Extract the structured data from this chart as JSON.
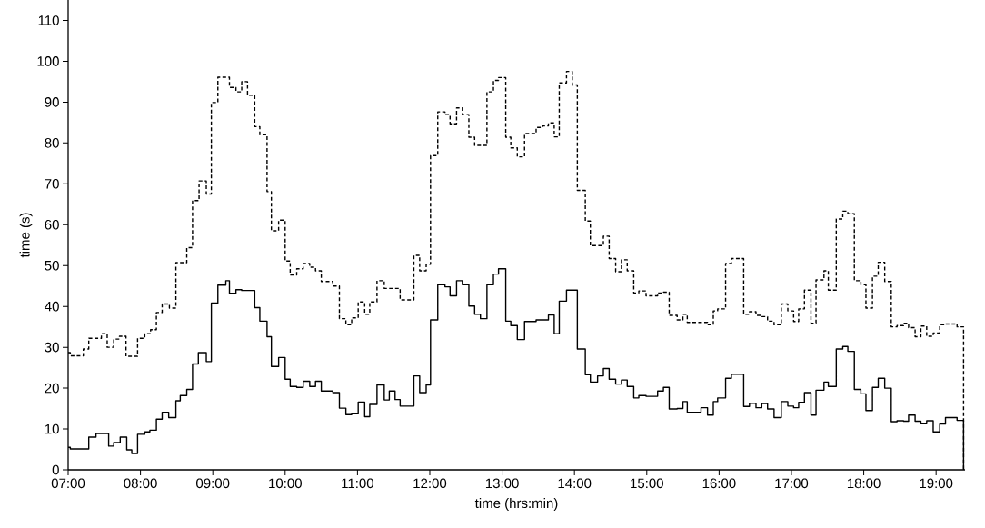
{
  "chart_data": {
    "type": "step",
    "xlabel": "time (hrs:min)",
    "ylabel": "time (s)",
    "xlim": [
      7,
      19.4
    ],
    "ylim": [
      0,
      115
    ],
    "xticks": [
      {
        "value": 7,
        "label": "07:00"
      },
      {
        "value": 8,
        "label": "08:00"
      },
      {
        "value": 9,
        "label": "09:00"
      },
      {
        "value": 10,
        "label": "10:00"
      },
      {
        "value": 11,
        "label": "11:00"
      },
      {
        "value": 12,
        "label": "12:00"
      },
      {
        "value": 13,
        "label": "13:00"
      },
      {
        "value": 14,
        "label": "14:00"
      },
      {
        "value": 15,
        "label": "15:00"
      },
      {
        "value": 16,
        "label": "16:00"
      },
      {
        "value": 17,
        "label": "17:00"
      },
      {
        "value": 18,
        "label": "18:00"
      },
      {
        "value": 19,
        "label": "19:00"
      }
    ],
    "yticks": [
      0,
      10,
      20,
      30,
      40,
      50,
      60,
      70,
      80,
      90,
      100,
      110
    ],
    "series": [
      {
        "color": "#000000",
        "line_style": "dashed",
        "x": [
          7.0,
          7.03,
          7.21,
          7.285,
          7.46,
          7.54,
          7.63,
          7.71,
          7.8,
          7.96,
          8.06,
          8.14,
          8.22,
          8.3,
          8.4,
          8.49,
          8.64,
          8.72,
          8.81,
          8.91,
          8.98,
          9.07,
          9.23,
          9.32,
          9.4,
          9.48,
          9.58,
          9.65,
          9.75,
          9.81,
          9.91,
          10.0,
          10.07,
          10.16,
          10.25,
          10.34,
          10.42,
          10.5,
          10.66,
          10.75,
          10.84,
          10.92,
          11.01,
          11.1,
          11.17,
          11.27,
          11.37,
          11.59,
          11.78,
          11.86,
          11.95,
          12.01,
          12.11,
          12.21,
          12.28,
          12.37,
          12.45,
          12.54,
          12.62,
          12.79,
          12.88,
          12.95,
          13.05,
          13.12,
          13.21,
          13.31,
          13.47,
          13.56,
          13.64,
          13.72,
          13.79,
          13.89,
          13.97,
          14.04,
          14.15,
          14.22,
          14.4,
          14.48,
          14.57,
          14.65,
          14.73,
          14.82,
          14.89,
          14.99,
          15.15,
          15.23,
          15.31,
          15.42,
          15.5,
          15.56,
          15.84,
          15.92,
          15.98,
          16.09,
          16.17,
          16.34,
          16.42,
          16.51,
          16.59,
          16.67,
          16.76,
          16.86,
          16.95,
          17.03,
          17.1,
          17.18,
          17.27,
          17.34,
          17.45,
          17.51,
          17.62,
          17.71,
          17.78,
          17.87,
          17.96,
          18.03,
          18.12,
          18.2,
          18.29,
          18.38,
          18.46,
          18.55,
          18.62,
          18.71,
          18.79,
          18.87,
          18.96,
          19.05,
          19.13,
          19.29,
          19.38
        ],
        "values": [
          28.7,
          27.9,
          29.6,
          32.2,
          33.3,
          30.0,
          32.0,
          32.7,
          27.8,
          32.2,
          33.3,
          34.3,
          38.5,
          40.6,
          39.6,
          50.7,
          54.4,
          65.9,
          70.7,
          67.5,
          89.9,
          96.1,
          93.6,
          92.5,
          95.0,
          91.7,
          84.0,
          82.0,
          68.1,
          58.5,
          61.1,
          51.1,
          47.7,
          49.2,
          50.5,
          49.6,
          48.7,
          46.1,
          45.0,
          37.0,
          35.5,
          37.2,
          41.1,
          38.1,
          41.1,
          46.3,
          44.4,
          41.6,
          52.5,
          48.7,
          50.3,
          76.9,
          87.6,
          86.9,
          84.7,
          88.6,
          86.9,
          81.4,
          79.4,
          92.5,
          95.3,
          96.0,
          81.4,
          78.8,
          76.6,
          82.3,
          83.8,
          84.2,
          84.9,
          81.5,
          94.7,
          97.5,
          94.2,
          68.4,
          60.9,
          54.9,
          57.2,
          51.7,
          48.5,
          51.4,
          48.7,
          43.3,
          43.8,
          42.6,
          43.3,
          43.5,
          37.8,
          36.7,
          38.1,
          36.1,
          35.5,
          38.9,
          39.4,
          50.5,
          51.7,
          38.1,
          38.7,
          37.8,
          37.5,
          36.4,
          35.5,
          40.6,
          38.9,
          36.3,
          39.4,
          44.0,
          35.9,
          46.5,
          48.7,
          44.0,
          61.4,
          63.3,
          62.7,
          46.3,
          45.3,
          39.6,
          47.4,
          50.8,
          46.1,
          35.0,
          35.3,
          35.9,
          34.8,
          32.6,
          35.2,
          32.7,
          33.5,
          35.5,
          35.7,
          35.0,
          0
        ]
      },
      {
        "color": "#000000",
        "line_style": "solid",
        "x": [
          7.0,
          7.03,
          7.285,
          7.385,
          7.56,
          7.63,
          7.72,
          7.81,
          7.88,
          7.96,
          8.06,
          8.13,
          8.22,
          8.3,
          8.39,
          8.49,
          8.55,
          8.64,
          8.72,
          8.8,
          8.91,
          8.98,
          9.07,
          9.18,
          9.23,
          9.32,
          9.4,
          9.58,
          9.65,
          9.75,
          9.81,
          9.91,
          10.0,
          10.07,
          10.16,
          10.25,
          10.34,
          10.42,
          10.5,
          10.66,
          10.75,
          10.84,
          10.92,
          11.01,
          11.1,
          11.17,
          11.27,
          11.37,
          11.44,
          11.52,
          11.59,
          11.78,
          11.86,
          11.95,
          12.01,
          12.11,
          12.21,
          12.28,
          12.37,
          12.45,
          12.54,
          12.62,
          12.7,
          12.79,
          12.88,
          12.95,
          13.05,
          13.12,
          13.21,
          13.31,
          13.47,
          13.64,
          13.72,
          13.79,
          13.89,
          14.04,
          14.15,
          14.22,
          14.32,
          14.4,
          14.48,
          14.57,
          14.65,
          14.73,
          14.82,
          14.89,
          14.99,
          15.15,
          15.23,
          15.31,
          15.42,
          15.5,
          15.56,
          15.75,
          15.84,
          15.92,
          15.98,
          16.09,
          16.17,
          16.34,
          16.42,
          16.51,
          16.59,
          16.67,
          16.76,
          16.86,
          16.95,
          17.03,
          17.1,
          17.18,
          17.27,
          17.34,
          17.45,
          17.51,
          17.62,
          17.71,
          17.78,
          17.87,
          17.96,
          18.03,
          18.12,
          18.2,
          18.29,
          18.38,
          18.46,
          18.55,
          18.62,
          18.71,
          18.79,
          18.87,
          18.96,
          19.05,
          19.13,
          19.29,
          19.38
        ],
        "values": [
          5.5,
          5.1,
          8.0,
          8.9,
          5.8,
          6.7,
          8.0,
          4.9,
          4.0,
          8.7,
          9.3,
          9.7,
          12.4,
          14.1,
          12.8,
          16.9,
          18.2,
          19.7,
          25.9,
          28.7,
          26.5,
          40.8,
          45.2,
          46.3,
          43.2,
          44.1,
          43.9,
          39.7,
          36.4,
          32.6,
          25.3,
          27.5,
          22.2,
          20.4,
          20.2,
          21.7,
          20.4,
          21.7,
          19.3,
          18.9,
          15.1,
          13.5,
          13.7,
          16.6,
          13.0,
          16.0,
          20.8,
          17.1,
          19.3,
          17.2,
          15.6,
          23.0,
          18.9,
          20.8,
          36.7,
          45.3,
          44.8,
          42.6,
          46.3,
          45.3,
          40.1,
          38.1,
          37.0,
          45.3,
          47.9,
          49.2,
          36.4,
          35.3,
          31.9,
          36.3,
          36.7,
          37.9,
          33.3,
          41.3,
          44.0,
          29.6,
          23.3,
          21.5,
          23.0,
          24.8,
          22.2,
          21.0,
          22.0,
          20.4,
          17.6,
          18.2,
          18.0,
          19.3,
          20.2,
          14.9,
          15.0,
          16.7,
          14.1,
          15.2,
          13.4,
          16.7,
          17.6,
          22.4,
          23.4,
          15.5,
          16.3,
          15.2,
          16.2,
          14.9,
          12.8,
          16.7,
          15.6,
          15.2,
          16.5,
          18.9,
          13.4,
          19.5,
          21.5,
          20.4,
          29.6,
          30.2,
          29.0,
          19.7,
          18.6,
          14.5,
          20.2,
          22.4,
          20.0,
          11.8,
          12.0,
          11.9,
          13.4,
          11.9,
          11.3,
          12.0,
          9.3,
          11.2,
          12.8,
          12.1,
          0
        ]
      }
    ]
  }
}
